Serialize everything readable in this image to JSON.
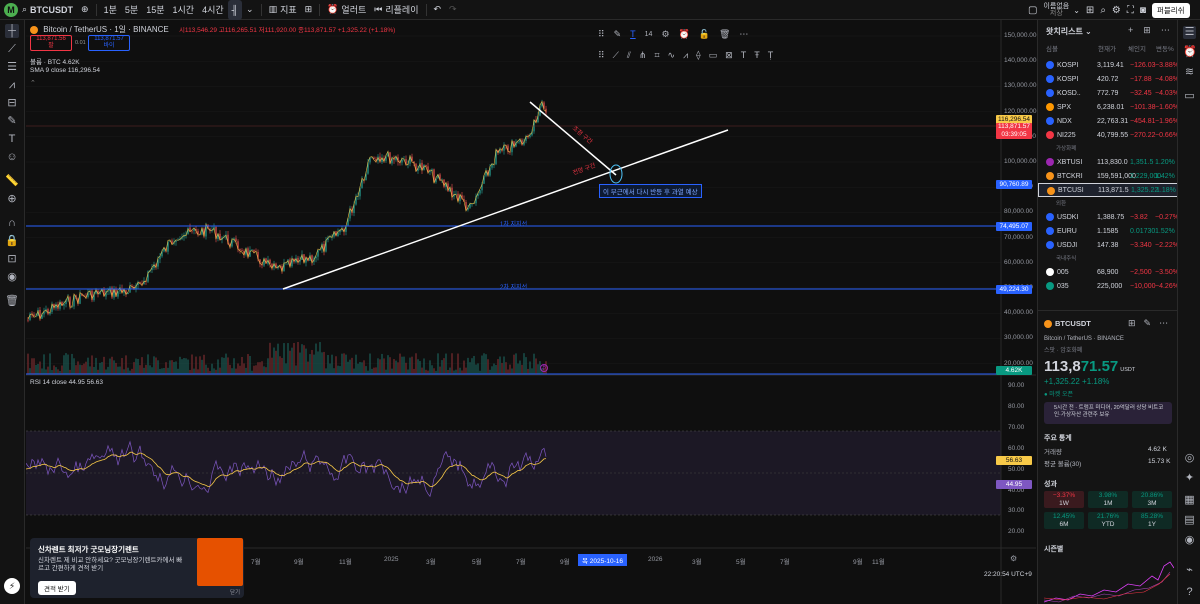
{
  "topbar": {
    "logo": "M",
    "symbol": "BTCUSDT",
    "intervals": [
      "1분",
      "5분",
      "15분",
      "1시간",
      "4시간"
    ],
    "indicators": "지표",
    "alert": "얼러트",
    "replay": "리플레이",
    "layout_name": "이름없음",
    "layout_sub": "저장",
    "publish": "퍼블리쉬"
  },
  "legend": {
    "title": "Bitcoin / TetherUS · 1일 · BINANCE",
    "ohlc": "시113,546.29 고116,265.51 저111,920.00 종113,871.57 +1,325.22 (+1.18%)",
    "sell_price": "113,871.56",
    "sell_label": "팔",
    "spread": "0.01",
    "buy_price": "113,871.57",
    "buy_label": "바이",
    "volume": "볼륨 · BTC  4.62K",
    "sma": "SMA 9 close  116,296.54",
    "rsi": "RSI 14 close  44.95  56.63"
  },
  "drawing_toolbar": {
    "size": "14"
  },
  "annotations": {
    "trend_note": "이 부근에서 다시 반등 후 과열 예상",
    "label_a": "1차 지지선",
    "label_b": "2차 지지선",
    "red_a": "조정 구간",
    "red_b": "전망 구간"
  },
  "price_axis": [
    "150,000.00",
    "140,000.00",
    "130,000.00",
    "120,000.00",
    "110,000.00",
    "100,000.00",
    "90,000.00",
    "80,000.00",
    "70,000.00",
    "60,000.00",
    "50,000.00",
    "40,000.00",
    "30,000.00",
    "20,000.00"
  ],
  "price_tags": {
    "sma": "116,296.54",
    "last": "113,871.57",
    "countdown": "03:39:05",
    "trend": "90,760.89",
    "line1": "74,495.07",
    "line2": "49,224.30",
    "vol": "4.62K"
  },
  "rsi_axis": [
    "90.00",
    "80.00",
    "70.00",
    "60.00",
    "50.00",
    "40.00",
    "30.00",
    "20.00"
  ],
  "rsi_tags": {
    "sma": "56.63",
    "rsi": "44.95"
  },
  "time_axis": [
    "7월",
    "9월",
    "11월",
    "2025",
    "3월",
    "5월",
    "7월",
    "9월",
    "2026",
    "3월",
    "5월",
    "7월",
    "9월",
    "11월"
  ],
  "time_cursor": "목 2025-10-16",
  "clock": "22:20:54 UTC+9",
  "ad": {
    "title": "신차렌트 최저가 굿모닝장기렌트",
    "body": "신차렌트 제 비교 안하세요? 굿모닝장기렌트카에서 빠르고 간편하게 견적 받기",
    "button": "견적 받기",
    "close": "닫기"
  },
  "watchlist": {
    "title": "왓치리스트",
    "columns": [
      "심볼",
      "현재가",
      "체인지",
      "변동%"
    ],
    "rows": [
      {
        "sym": "KOSPI",
        "price": "3,119.41",
        "chg": "−126.03",
        "pct": "−3.88%",
        "color": "#2962ff"
      },
      {
        "sym": "KOSPI",
        "price": "420.72",
        "chg": "−17.88",
        "pct": "−4.08%",
        "color": "#2962ff"
      },
      {
        "sym": "KOSD..",
        "price": "772.79",
        "chg": "−32.45",
        "pct": "−4.03%",
        "color": "#2962ff"
      },
      {
        "sym": "SPX",
        "price": "6,238.01",
        "chg": "−101.38",
        "pct": "−1.60%",
        "color": "#ff9800"
      },
      {
        "sym": "NDX",
        "price": "22,763.31",
        "chg": "−454.81",
        "pct": "−1.96%",
        "color": "#2962ff"
      },
      {
        "sym": "NI225",
        "price": "40,799.55",
        "chg": "−270.22",
        "pct": "−0.66%",
        "color": "#f23645"
      }
    ],
    "section_crypto": "가상화폐",
    "crypto": [
      {
        "sym": "XBTUSI",
        "price": "113,830.0",
        "chg": "1,351.5",
        "pct": "1.20%",
        "color": "#9c27b0"
      },
      {
        "sym": "BTCKRI",
        "price": "159,591,000",
        "chg": "2,229,000",
        "pct": "1.42%",
        "color": "#f7931a"
      },
      {
        "sym": "BTCUSI",
        "price": "113,871.5",
        "chg": "1,325.22",
        "pct": "1.18%",
        "color": "#f7931a"
      }
    ],
    "section_fx": "외환",
    "fx": [
      {
        "sym": "USDKI",
        "price": "1,388.75",
        "chg": "−3.82",
        "pct": "−0.27%",
        "color": "#2962ff"
      },
      {
        "sym": "EURU",
        "price": "1.1585",
        "chg": "0.01730",
        "pct": "1.52%",
        "color": "#2962ff"
      },
      {
        "sym": "USDJI",
        "price": "147.38",
        "chg": "−3.340",
        "pct": "−2.22%",
        "color": "#2962ff"
      }
    ],
    "section_kr": "국내주식",
    "kr": [
      {
        "sym": "005",
        "price": "68,900",
        "chg": "−2,500",
        "pct": "−3.50%",
        "color": "#fff"
      },
      {
        "sym": "035",
        "price": "225,000",
        "chg": "−10,000",
        "pct": "−4.26%",
        "color": "#089981"
      }
    ]
  },
  "details": {
    "symbol": "BTCUSDT",
    "desc": "Bitcoin / TetherUS · BINANCE",
    "type": "스팟 · 암호화폐",
    "price_main": "113,8",
    "price_tail": "71.57",
    "currency": "USDT",
    "change": "+1,325.22  +1.18%",
    "market": "● 마켓 오픈",
    "news": "5시간 전 · 트럼프 미디어, 20억달러 상당 비트코인·가상자산 관련주 보유",
    "stats_title": "주요 통계",
    "volume_label": "거래량",
    "volume": "4.62 K",
    "avg_label": "평균 볼륨(30)",
    "avg": "15.73 K",
    "perf_title": "성과",
    "perf": [
      {
        "v": "−3.37%",
        "p": "1W"
      },
      {
        "v": "3.98%",
        "p": "1M"
      },
      {
        "v": "20.86%",
        "p": "3M"
      },
      {
        "v": "12.45%",
        "p": "6M"
      },
      {
        "v": "21.76%",
        "p": "YTD"
      },
      {
        "v": "85.28%",
        "p": "1Y"
      }
    ],
    "season_title": "시즌별"
  }
}
